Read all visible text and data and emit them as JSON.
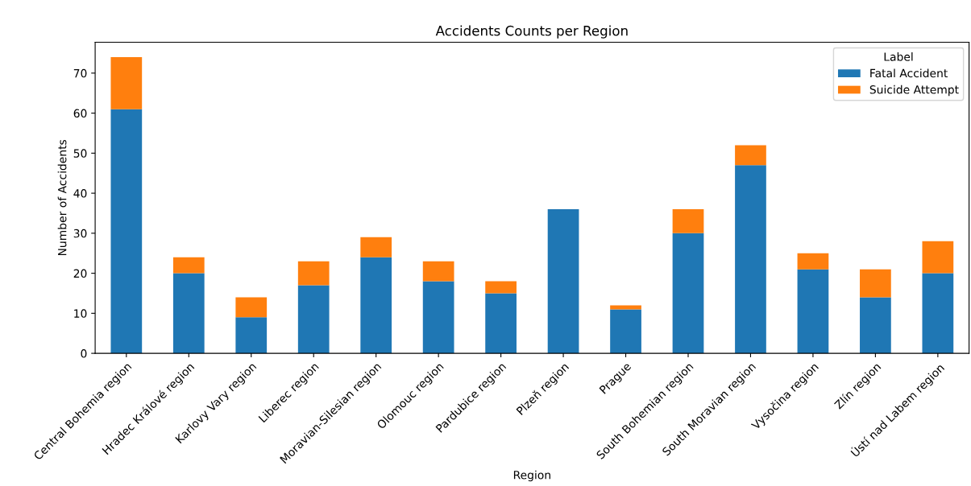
{
  "chart_data": {
    "type": "bar",
    "title": "Accidents Counts per Region",
    "xlabel": "Region",
    "ylabel": "Number of Accidents",
    "legend_title": "Label",
    "legend": "top right",
    "stacked": true,
    "grid": false,
    "categories": [
      "Central Bohemia region",
      "Hradec Králové region",
      "Karlovy Vary region",
      "Liberec region",
      "Moravian-Silesian region",
      "Olomouc region",
      "Pardubice region",
      "Plzeň region",
      "Prague",
      "South Bohemian region",
      "South Moravian region",
      "Vysočina region",
      "Zlín region",
      "Ústí nad Labem region"
    ],
    "series": [
      {
        "name": "Fatal Accident",
        "color": "#1f77b4",
        "values": [
          61,
          20,
          9,
          17,
          24,
          18,
          15,
          36,
          11,
          30,
          47,
          21,
          14,
          20
        ]
      },
      {
        "name": "Suicide Attempt",
        "color": "#ff7f0e",
        "values": [
          13,
          4,
          5,
          6,
          5,
          5,
          3,
          0,
          1,
          6,
          5,
          4,
          7,
          8
        ]
      }
    ],
    "ylim": [
      0,
      77.7
    ],
    "yticks": [
      0,
      10,
      20,
      30,
      40,
      50,
      60,
      70
    ]
  }
}
